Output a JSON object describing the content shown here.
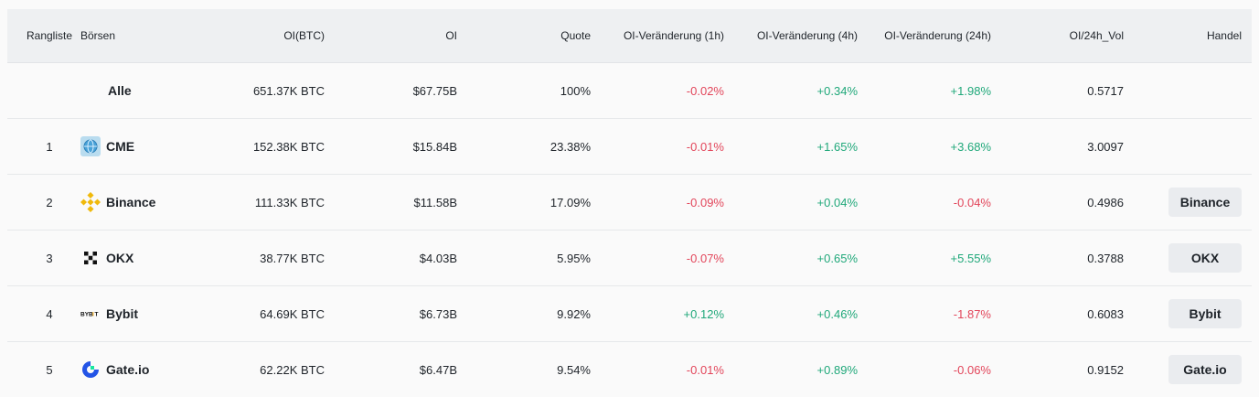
{
  "columns": {
    "rank": "Rangliste",
    "exchange": "Börsen",
    "oi_btc": "OI(BTC)",
    "oi": "OI",
    "share": "Quote",
    "change_1h": "OI-Veränderung (1h)",
    "change_4h": "OI-Veränderung (4h)",
    "change_24h": "OI-Veränderung (24h)",
    "oi_vol": "OI/24h_Vol",
    "trade": "Handel"
  },
  "rows": [
    {
      "rank": "",
      "exchange": "Alle",
      "icon": "",
      "oi_btc": "651.37K BTC",
      "oi": "$67.75B",
      "share": "100%",
      "change_1h": "-0.02%",
      "change_4h": "+0.34%",
      "change_24h": "+1.98%",
      "oi_vol": "0.5717",
      "trade": ""
    },
    {
      "rank": "1",
      "exchange": "CME",
      "icon": "cme-globe-icon",
      "oi_btc": "152.38K BTC",
      "oi": "$15.84B",
      "share": "23.38%",
      "change_1h": "-0.01%",
      "change_4h": "+1.65%",
      "change_24h": "+3.68%",
      "oi_vol": "3.0097",
      "trade": ""
    },
    {
      "rank": "2",
      "exchange": "Binance",
      "icon": "binance-logo-icon",
      "oi_btc": "111.33K BTC",
      "oi": "$11.58B",
      "share": "17.09%",
      "change_1h": "-0.09%",
      "change_4h": "+0.04%",
      "change_24h": "-0.04%",
      "oi_vol": "0.4986",
      "trade": "Binance"
    },
    {
      "rank": "3",
      "exchange": "OKX",
      "icon": "okx-logo-icon",
      "oi_btc": "38.77K BTC",
      "oi": "$4.03B",
      "share": "5.95%",
      "change_1h": "-0.07%",
      "change_4h": "+0.65%",
      "change_24h": "+5.55%",
      "oi_vol": "0.3788",
      "trade": "OKX"
    },
    {
      "rank": "4",
      "exchange": "Bybit",
      "icon": "bybit-logo-icon",
      "oi_btc": "64.69K BTC",
      "oi": "$6.73B",
      "share": "9.92%",
      "change_1h": "+0.12%",
      "change_4h": "+0.46%",
      "change_24h": "-1.87%",
      "oi_vol": "0.6083",
      "trade": "Bybit"
    },
    {
      "rank": "5",
      "exchange": "Gate.io",
      "icon": "gate-logo-icon",
      "oi_btc": "62.22K BTC",
      "oi": "$6.47B",
      "share": "9.54%",
      "change_1h": "-0.01%",
      "change_4h": "+0.89%",
      "change_24h": "-0.06%",
      "oi_vol": "0.9152",
      "trade": "Gate.io"
    }
  ],
  "colors": {
    "positive": "#20a87a",
    "negative": "#e2455a",
    "header_bg": "#eef0f2",
    "button_bg": "#eaecef"
  }
}
